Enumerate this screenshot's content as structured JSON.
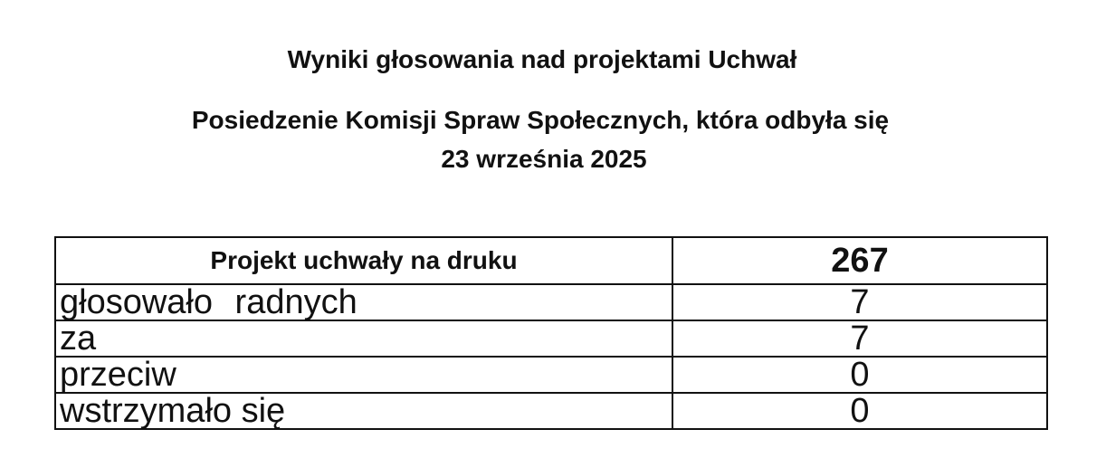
{
  "header": {
    "title": "Wyniki głosowania nad projektami Uchwał",
    "subtitle": "Posiedzenie Komisji Spraw Społecznych, która odbyła się",
    "date": "23 września 2025"
  },
  "table": {
    "header": {
      "label": "Projekt uchwały na druku",
      "value": "267"
    },
    "rows": [
      {
        "label": "głosowało   radnych",
        "value": "7"
      },
      {
        "label": "za",
        "value": "7"
      },
      {
        "label": "przeciw",
        "value": "0"
      },
      {
        "label": "wstrzymało się",
        "value": "0"
      }
    ]
  }
}
